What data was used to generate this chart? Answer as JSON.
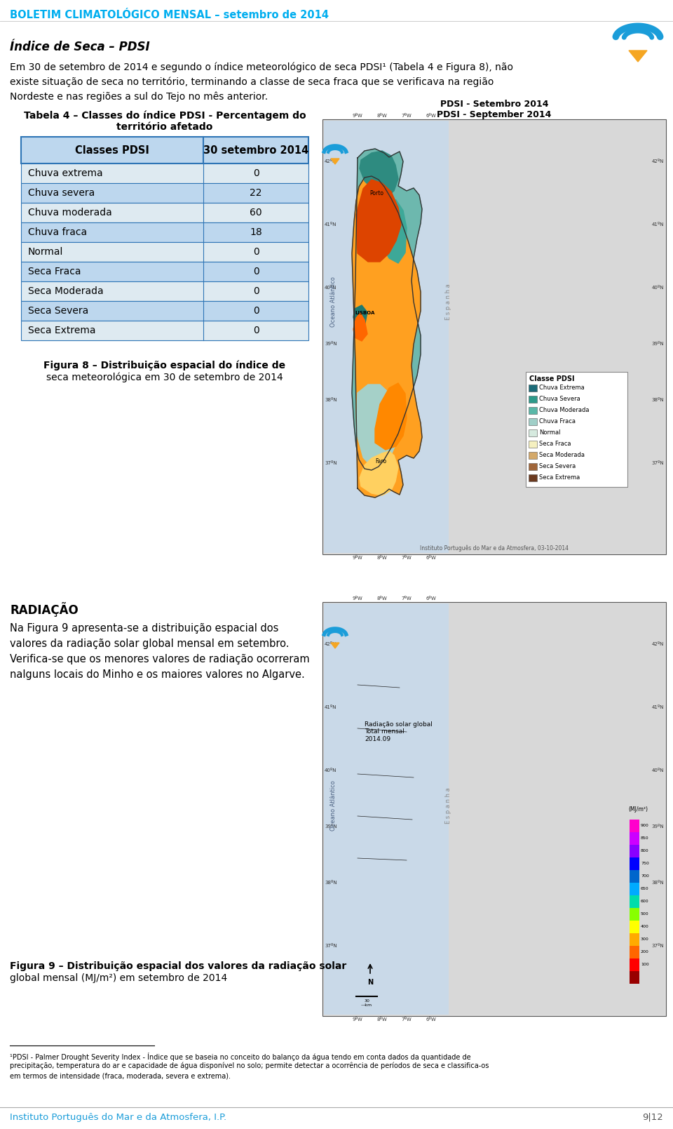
{
  "header_text": "BOLETIM CLIMATOLÓGICO MENSAL – setembro de 2014",
  "header_color": "#00AEEF",
  "section_title": "Índice de Seca – PDSI",
  "table_caption_line1": "Tabela 4 – Classes do índice PDSI - Percentagem do",
  "table_caption_line2": "território afetado",
  "table_header_col1": "Classes PDSI",
  "table_header_col2": "30 setembro 2014",
  "table_rows": [
    [
      "Chuva extrema",
      "0"
    ],
    [
      "Chuva severa",
      "22"
    ],
    [
      "Chuva moderada",
      "60"
    ],
    [
      "Chuva fraca",
      "18"
    ],
    [
      "Normal",
      "0"
    ],
    [
      "Seca Fraca",
      "0"
    ],
    [
      "Seca Moderada",
      "0"
    ],
    [
      "Seca Severa",
      "0"
    ],
    [
      "Seca Extrema",
      "0"
    ]
  ],
  "body_text_1_lines": [
    "Em 30 de setembro de 2014 e segundo o índice meteorológico de seca PDSI¹ (Tabela 4 e Figura 8), não",
    "existe situação de seca no território, terminando a classe de seca fraca que se verificava na região",
    "Nordeste e nas regiões a sul do Tejo no mês anterior."
  ],
  "fig8_caption_line1": "Figura 8 – Distribuição espacial do índice de",
  "fig8_caption_line2": "seca meteorológica em 30 de setembro de 2014",
  "map1_title1": "PDSI - Setembro 2014",
  "map1_title2": "PDSI - September 2014",
  "section2_title": "RADIAÇÃO",
  "body_text_2_lines": [
    "Na Figura 9 apresenta-se a distribuição espacial dos",
    "valores da radiação solar global mensal em setembro.",
    "Verifica-se que os menores valores de radiação ocorreram",
    "nalguns locais do Minho e os maiores valores no Algarve."
  ],
  "fig9_caption_line1": "Figura 9 – Distribuição espacial dos valores da radiação solar",
  "fig9_caption_line2": "global mensal (MJ/m²) em setembro de 2014",
  "footer_fn_line1": "¹PDSI - Palmer Drought Severity Index - Índice que se baseia no conceito do balanço da água tendo em conta dados da quantidade de",
  "footer_fn_line2": "precipitação, temperatura do ar e capacidade de água disponível no solo; permite detectar a ocorrência de períodos de seca e classifica-os",
  "footer_fn_line3": "em termos de intensidade (fraca, moderada, severa e extrema).",
  "footer_institute": "Instituto Português do Mar e da Atmosfera, I.P.",
  "footer_page": "9|12",
  "table_header_bg": "#BDD7EE",
  "table_alt_bg": "#DEEAF1",
  "table_border": "#2E75B6",
  "bg_color": "#FFFFFF",
  "map1_legend_items": [
    [
      "Chuva Extrema",
      "#1B6B78"
    ],
    [
      "Chuva Severa",
      "#2D9A8A"
    ],
    [
      "Chuva Moderada",
      "#5AB8A8"
    ],
    [
      "Chuva Fraca",
      "#A0CFC8"
    ],
    [
      "Normal",
      "#D6EADF"
    ],
    [
      "Seca Fraca",
      "#F5F0C0"
    ],
    [
      "Seca Moderada",
      "#D4A96A"
    ],
    [
      "Seca Severa",
      "#A0663A"
    ],
    [
      "Seca Extrema",
      "#6B3A1F"
    ]
  ]
}
